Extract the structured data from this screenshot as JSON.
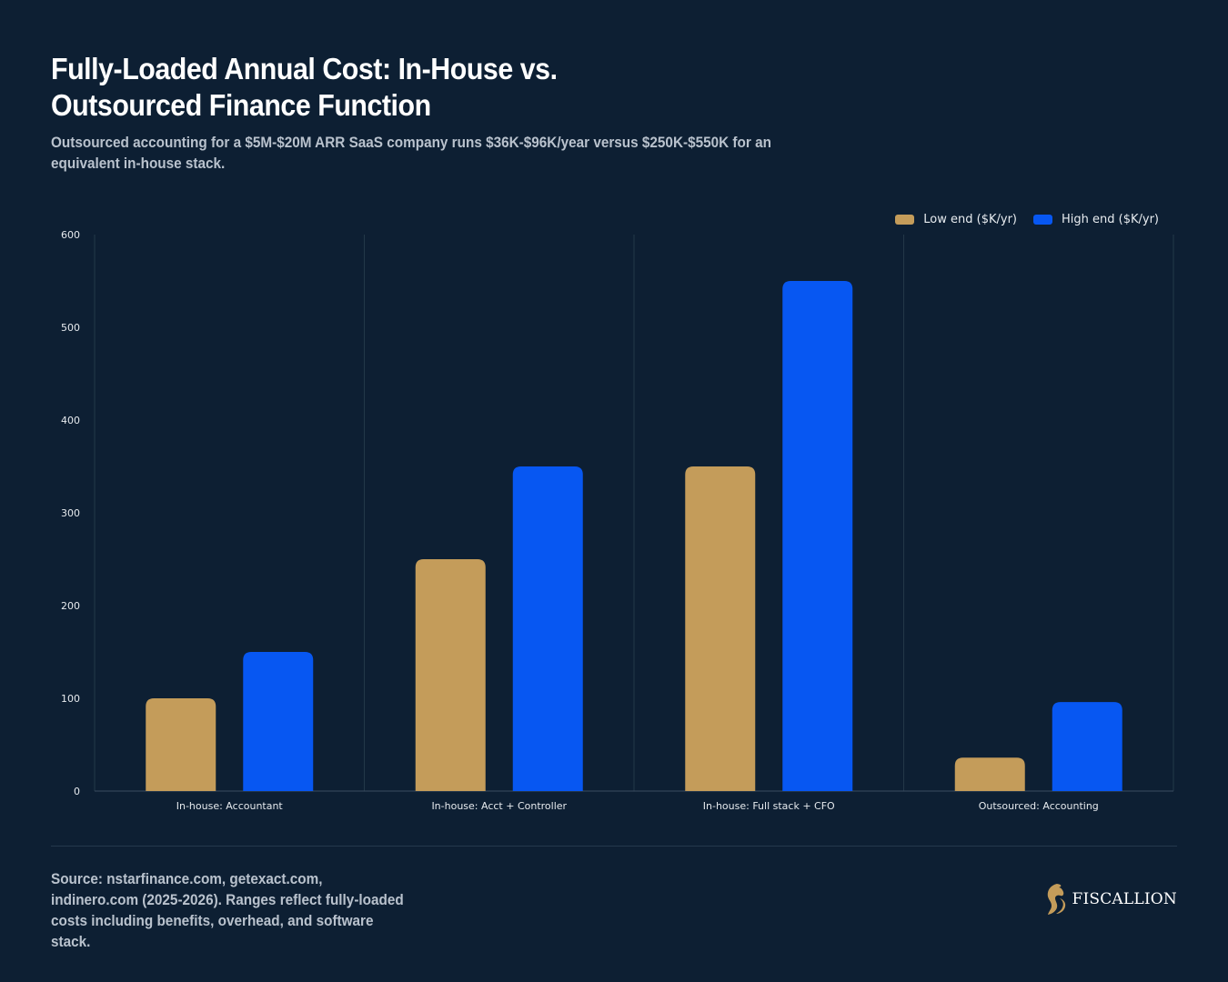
{
  "header": {
    "title": "Fully-Loaded Annual Cost: In-House vs. Outsourced Finance Function",
    "subtitle": "Outsourced accounting for a $5M-$20M ARR SaaS company runs $36K-$96K/year versus $250K-$550K for an equivalent in-house stack."
  },
  "footer": {
    "source": "Source: nstarfinance.com, getexact.com, indinero.com (2025-2026). Ranges reflect fully-loaded costs including benefits, overhead, and software stack.",
    "brand": "FISCALLION"
  },
  "colors": {
    "background": "#0d1f33",
    "low": "#c49c5a",
    "high": "#0757f2",
    "grid": "#233848",
    "brand_icon": "#c49c5a"
  },
  "chart_data": {
    "type": "bar",
    "categories": [
      "In-house: Accountant",
      "In-house: Acct + Controller",
      "In-house: Full stack + CFO",
      "Outsourced: Accounting"
    ],
    "series": [
      {
        "name": "Low end ($K/yr)",
        "values": [
          100,
          250,
          350,
          36
        ]
      },
      {
        "name": "High end ($K/yr)",
        "values": [
          150,
          350,
          550,
          96
        ]
      }
    ],
    "ylim": [
      0,
      600
    ],
    "yticks": [
      0,
      100,
      200,
      300,
      400,
      500,
      600
    ],
    "legend": "top-right",
    "grid": "vertical category separators"
  }
}
